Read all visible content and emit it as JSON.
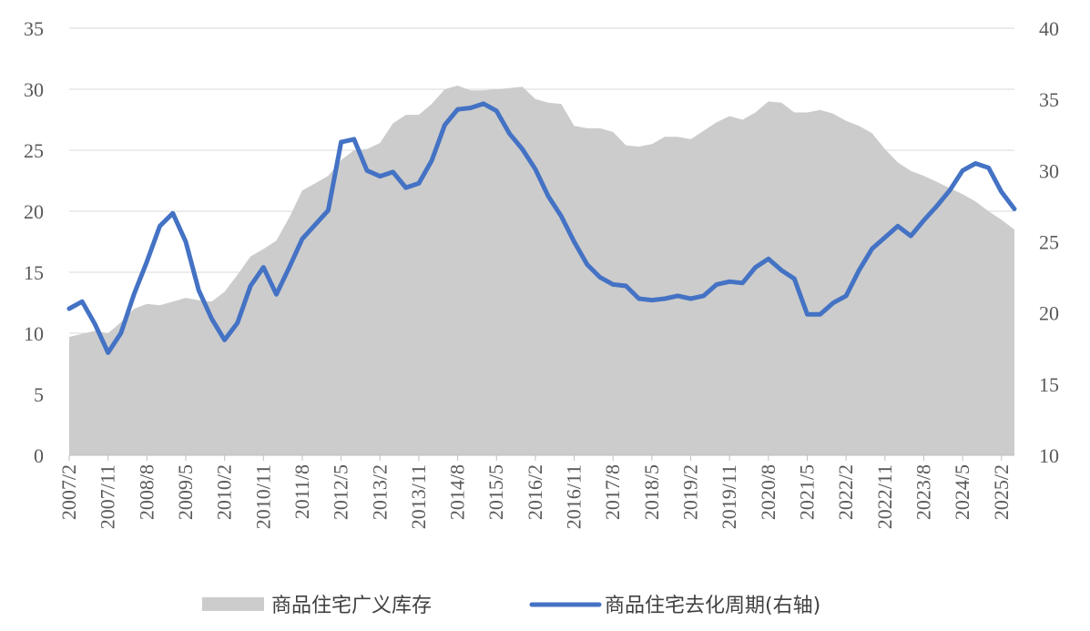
{
  "chart_data": {
    "type": "area",
    "title": "",
    "xlabel": "",
    "ylabel_left": "",
    "ylabel_right": "",
    "grid": true,
    "legend_position": "bottom",
    "x_start": "2007/2",
    "x_end": "2025/5",
    "x_ticks": [
      "2007/2",
      "2007/11",
      "2008/8",
      "2009/5",
      "2010/2",
      "2010/11",
      "2011/8",
      "2012/5",
      "2013/2",
      "2013/11",
      "2014/8",
      "2015/5",
      "2016/2",
      "2016/11",
      "2017/8",
      "2018/5",
      "2019/2",
      "2019/11",
      "2020/8",
      "2021/5",
      "2022/2",
      "2022/11",
      "2023/8",
      "2024/5",
      "2025/2"
    ],
    "y_left": {
      "min": 0,
      "max": 35,
      "ticks": [
        0,
        5,
        10,
        15,
        20,
        25,
        30,
        35
      ]
    },
    "y_right": {
      "min": 10,
      "max": 40,
      "ticks": [
        10,
        15,
        20,
        25,
        30,
        35,
        40
      ]
    },
    "series": [
      {
        "name": "商品住宅广义库存",
        "type": "area",
        "axis": "left",
        "color": "#cccccc",
        "points": [
          [
            "2007/2",
            9.7
          ],
          [
            "2007/8",
            10.2
          ],
          [
            "2007/11",
            10.0
          ],
          [
            "2008/2",
            10.9
          ],
          [
            "2008/5",
            12.0
          ],
          [
            "2008/8",
            12.4
          ],
          [
            "2008/11",
            12.3
          ],
          [
            "2009/2",
            12.6
          ],
          [
            "2009/5",
            12.9
          ],
          [
            "2009/8",
            12.7
          ],
          [
            "2009/11",
            12.6
          ],
          [
            "2010/2",
            13.4
          ],
          [
            "2010/5",
            14.8
          ],
          [
            "2010/8",
            16.3
          ],
          [
            "2010/11",
            16.9
          ],
          [
            "2011/2",
            17.6
          ],
          [
            "2011/5",
            19.5
          ],
          [
            "2011/8",
            21.7
          ],
          [
            "2011/11",
            22.3
          ],
          [
            "2012/2",
            22.9
          ],
          [
            "2012/5",
            24.2
          ],
          [
            "2012/8",
            25.0
          ],
          [
            "2012/11",
            25.1
          ],
          [
            "2013/2",
            25.6
          ],
          [
            "2013/5",
            27.2
          ],
          [
            "2013/8",
            27.9
          ],
          [
            "2013/11",
            27.9
          ],
          [
            "2014/2",
            28.8
          ],
          [
            "2014/5",
            30.0
          ],
          [
            "2014/8",
            30.3
          ],
          [
            "2014/11",
            29.9
          ],
          [
            "2015/2",
            29.9
          ],
          [
            "2015/5",
            30.0
          ],
          [
            "2015/8",
            30.1
          ],
          [
            "2015/11",
            30.2
          ],
          [
            "2016/2",
            29.2
          ],
          [
            "2016/5",
            28.9
          ],
          [
            "2016/8",
            28.8
          ],
          [
            "2016/11",
            27.0
          ],
          [
            "2017/2",
            26.8
          ],
          [
            "2017/5",
            26.8
          ],
          [
            "2017/8",
            26.5
          ],
          [
            "2017/11",
            25.4
          ],
          [
            "2018/2",
            25.3
          ],
          [
            "2018/5",
            25.5
          ],
          [
            "2018/8",
            26.1
          ],
          [
            "2018/11",
            26.1
          ],
          [
            "2019/2",
            25.9
          ],
          [
            "2019/5",
            26.6
          ],
          [
            "2019/8",
            27.3
          ],
          [
            "2019/11",
            27.8
          ],
          [
            "2020/2",
            27.5
          ],
          [
            "2020/5",
            28.1
          ],
          [
            "2020/8",
            29.0
          ],
          [
            "2020/11",
            28.9
          ],
          [
            "2021/2",
            28.1
          ],
          [
            "2021/5",
            28.1
          ],
          [
            "2021/8",
            28.3
          ],
          [
            "2021/11",
            28.0
          ],
          [
            "2022/2",
            27.4
          ],
          [
            "2022/5",
            27.0
          ],
          [
            "2022/8",
            26.4
          ],
          [
            "2022/11",
            25.1
          ],
          [
            "2023/2",
            24.0
          ],
          [
            "2023/5",
            23.3
          ],
          [
            "2023/8",
            22.9
          ],
          [
            "2023/11",
            22.4
          ],
          [
            "2024/2",
            21.9
          ],
          [
            "2024/5",
            21.4
          ],
          [
            "2024/8",
            20.8
          ],
          [
            "2024/11",
            20.0
          ],
          [
            "2025/2",
            19.3
          ],
          [
            "2025/5",
            18.5
          ]
        ]
      },
      {
        "name": "商品住宅去化周期(右轴)",
        "type": "line",
        "axis": "right",
        "color": "#4472c4",
        "points": [
          [
            "2007/2",
            20.3
          ],
          [
            "2007/5",
            20.8
          ],
          [
            "2007/8",
            19.2
          ],
          [
            "2007/11",
            17.2
          ],
          [
            "2008/2",
            18.6
          ],
          [
            "2008/5",
            21.3
          ],
          [
            "2008/8",
            23.6
          ],
          [
            "2008/11",
            26.1
          ],
          [
            "2009/2",
            27.0
          ],
          [
            "2009/5",
            25.0
          ],
          [
            "2009/8",
            21.6
          ],
          [
            "2009/11",
            19.6
          ],
          [
            "2010/2",
            18.1
          ],
          [
            "2010/5",
            19.3
          ],
          [
            "2010/8",
            21.9
          ],
          [
            "2010/11",
            23.2
          ],
          [
            "2011/2",
            21.3
          ],
          [
            "2011/5",
            23.2
          ],
          [
            "2011/8",
            25.2
          ],
          [
            "2011/11",
            26.2
          ],
          [
            "2012/2",
            27.2
          ],
          [
            "2012/5",
            32.0
          ],
          [
            "2012/8",
            32.2
          ],
          [
            "2012/11",
            30.0
          ],
          [
            "2013/2",
            29.6
          ],
          [
            "2013/5",
            29.9
          ],
          [
            "2013/8",
            28.8
          ],
          [
            "2013/11",
            29.1
          ],
          [
            "2014/2",
            30.7
          ],
          [
            "2014/5",
            33.2
          ],
          [
            "2014/8",
            34.3
          ],
          [
            "2014/11",
            34.4
          ],
          [
            "2015/2",
            34.7
          ],
          [
            "2015/5",
            34.2
          ],
          [
            "2015/8",
            32.6
          ],
          [
            "2015/11",
            31.5
          ],
          [
            "2016/2",
            30.1
          ],
          [
            "2016/5",
            28.2
          ],
          [
            "2016/8",
            26.8
          ],
          [
            "2016/11",
            25.0
          ],
          [
            "2017/2",
            23.4
          ],
          [
            "2017/5",
            22.5
          ],
          [
            "2017/8",
            22.0
          ],
          [
            "2017/11",
            21.9
          ],
          [
            "2018/2",
            21.0
          ],
          [
            "2018/5",
            20.9
          ],
          [
            "2018/8",
            21.0
          ],
          [
            "2018/11",
            21.2
          ],
          [
            "2019/2",
            21.0
          ],
          [
            "2019/5",
            21.2
          ],
          [
            "2019/8",
            22.0
          ],
          [
            "2019/11",
            22.2
          ],
          [
            "2020/2",
            22.1
          ],
          [
            "2020/5",
            23.2
          ],
          [
            "2020/8",
            23.8
          ],
          [
            "2020/11",
            23.0
          ],
          [
            "2021/2",
            22.4
          ],
          [
            "2021/5",
            19.9
          ],
          [
            "2021/8",
            19.9
          ],
          [
            "2021/11",
            20.7
          ],
          [
            "2022/2",
            21.2
          ],
          [
            "2022/5",
            23.0
          ],
          [
            "2022/8",
            24.5
          ],
          [
            "2022/11",
            25.3
          ],
          [
            "2023/2",
            26.1
          ],
          [
            "2023/5",
            25.4
          ],
          [
            "2023/8",
            26.5
          ],
          [
            "2023/11",
            27.5
          ],
          [
            "2024/2",
            28.6
          ],
          [
            "2024/5",
            30.0
          ],
          [
            "2024/8",
            30.5
          ],
          [
            "2024/11",
            30.2
          ],
          [
            "2025/2",
            28.5
          ],
          [
            "2025/5",
            27.3
          ]
        ]
      }
    ],
    "legend": [
      {
        "label": "商品住宅广义库存",
        "swatch": "area",
        "color": "#cccccc"
      },
      {
        "label": "商品住宅去化周期(右轴)",
        "swatch": "line",
        "color": "#4472c4"
      }
    ]
  }
}
